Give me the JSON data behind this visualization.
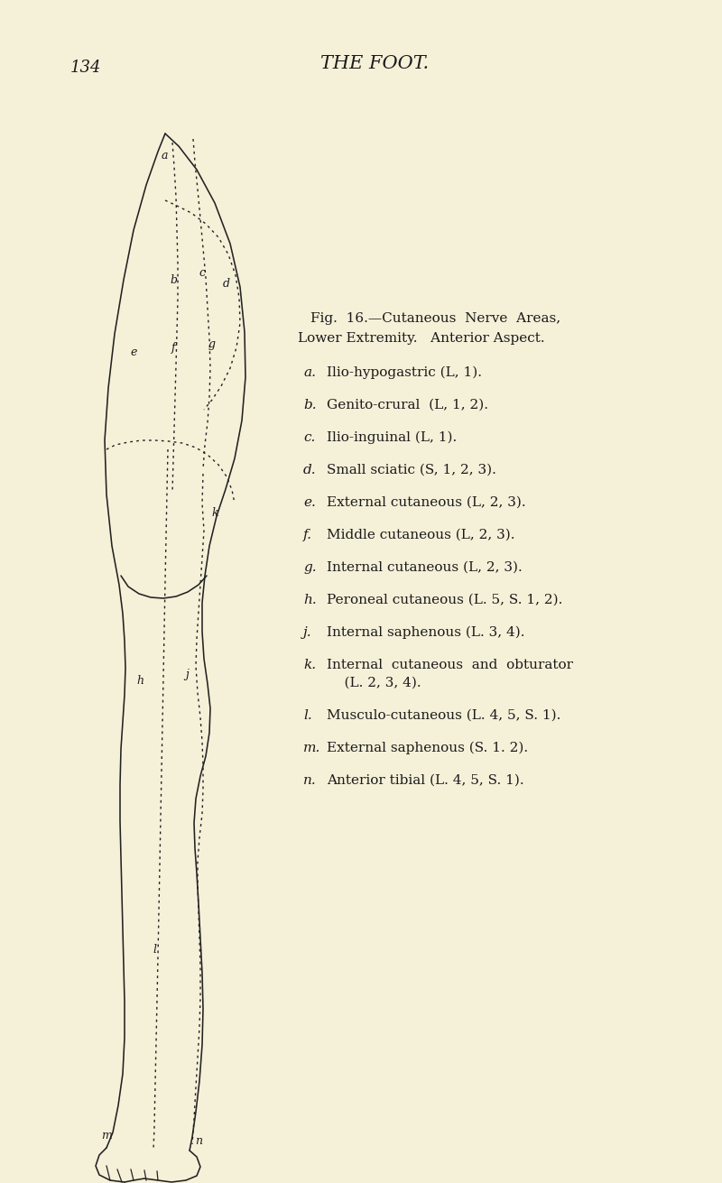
{
  "bg_color": "#f5f0d8",
  "page_number": "134",
  "title": "THE FOOT.",
  "fig_caption_line1": "Fig.  16.—Cutaneous  Nerve  Areas,",
  "fig_caption_line2": "Lower Extremity.   Anterior Aspect.",
  "legend": [
    {
      "letter": "a",
      "text": "Ilio-hypogastric (L, 1)."
    },
    {
      "letter": "b",
      "text": "Genito-crural  (L, 1, 2)."
    },
    {
      "letter": "c",
      "text": "Ilio-inguinal (L, 1)."
    },
    {
      "letter": "d",
      "text": "Small sciatic (S, 1, 2, 3)."
    },
    {
      "letter": "e",
      "text": "External cutaneous (L, 2, 3)."
    },
    {
      "letter": "f",
      "text": "Middle cutaneous (L, 2, 3)."
    },
    {
      "letter": "g",
      "text": "Internal cutaneous (L, 2, 3)."
    },
    {
      "letter": "h",
      "text": "Peroneal cutaneous (L. 5, S. 1, 2)."
    },
    {
      "letter": "j",
      "text": "Internal saphenous (L. 3, 4)."
    },
    {
      "letter": "k",
      "text": "Internal  cutaneous  and  obturator"
    },
    {
      "letter": "",
      "text": "    (L. 2, 3, 4)."
    },
    {
      "letter": "l",
      "text": "Musculo-cutaneous (L. 4, 5, S. 1)."
    },
    {
      "letter": "m",
      "text": "External saphenous (S. 1. 2)."
    },
    {
      "letter": "n",
      "text": "Anterior tibial (L. 4, 5, S. 1)."
    }
  ],
  "text_color": "#1a1a1a",
  "line_color": "#222222"
}
